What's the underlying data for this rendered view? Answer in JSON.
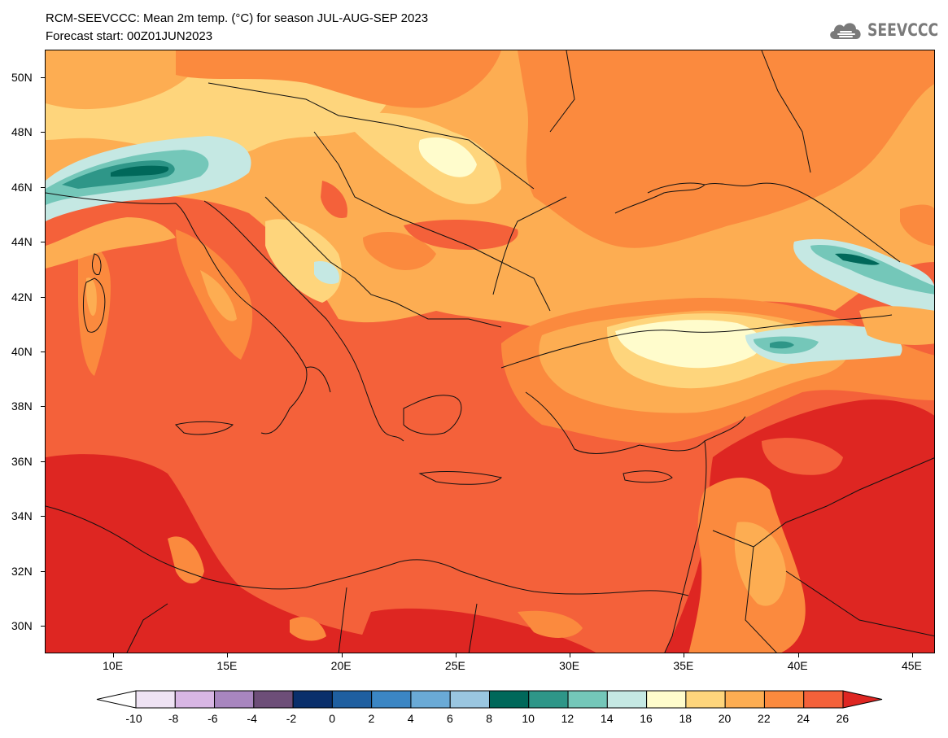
{
  "title": {
    "line1": "RCM-SEEVCCC: Mean 2m temp. (°C) for season JUL-AUG-SEP 2023",
    "line2": "Forecast start: 00Z01JUN2023"
  },
  "logo": {
    "text": "SEEVCCC",
    "icon": "cloud-icon",
    "color": "#7a7a7a"
  },
  "map": {
    "lon_range": [
      7,
      46
    ],
    "lat_range": [
      29,
      51
    ],
    "lat_ticks": [
      "50N",
      "48N",
      "46N",
      "44N",
      "42N",
      "40N",
      "38N",
      "36N",
      "34N",
      "32N",
      "30N"
    ],
    "lon_ticks": [
      "10E",
      "15E",
      "20E",
      "25E",
      "30E",
      "35E",
      "40E",
      "45E"
    ],
    "lat_tick_values": [
      50,
      48,
      46,
      44,
      42,
      40,
      38,
      36,
      34,
      32,
      30
    ],
    "lon_tick_values": [
      10,
      15,
      20,
      25,
      30,
      35,
      40,
      45
    ]
  },
  "colorbar": {
    "labels": [
      "-10",
      "-8",
      "-6",
      "-4",
      "-2",
      "0",
      "2",
      "4",
      "6",
      "8",
      "10",
      "12",
      "14",
      "16",
      "18",
      "20",
      "22",
      "24",
      "26"
    ],
    "colors": [
      "#ffffff",
      "#efe3f4",
      "#d8b6e4",
      "#a886bf",
      "#6d4e78",
      "#0a2f6b",
      "#1f5fa0",
      "#3b86c4",
      "#6aaad6",
      "#9ac6e0",
      "#00685a",
      "#2e9688",
      "#74c7b9",
      "#c5e8e3",
      "#fffccc",
      "#fed57c",
      "#fdad52",
      "#fb8a3e",
      "#f4613a",
      "#de2622"
    ],
    "units": "°C"
  }
}
